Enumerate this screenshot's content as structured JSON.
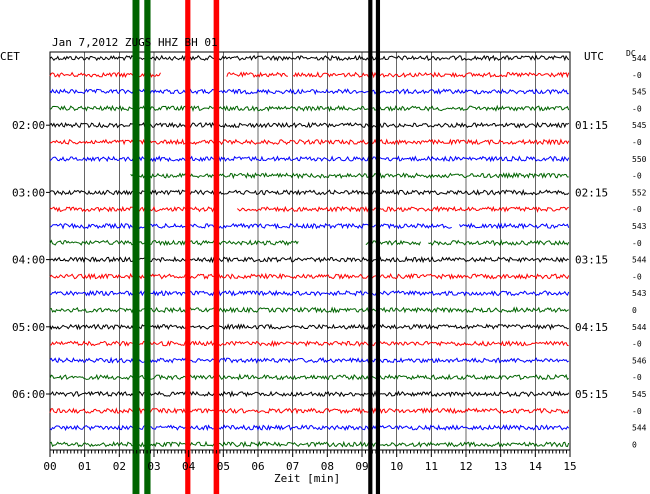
{
  "chart_data": {
    "type": "line",
    "title": "Jan 7,2012   ZUGS HHZ BH 01",
    "left_unit": "CET",
    "right_unit": "UTC",
    "dc_label": "DC",
    "xlabel": "Zeit [min]",
    "xlim": [
      0,
      15
    ],
    "x_ticks": [
      "00",
      "01",
      "02",
      "03",
      "04",
      "05",
      "06",
      "07",
      "08",
      "09",
      "10",
      "11",
      "12",
      "13",
      "14",
      "15"
    ],
    "trace_count": 24,
    "trace_colors": [
      "#000000",
      "#ff0000",
      "#0000ff",
      "#006400"
    ],
    "left_time_labels": [
      {
        "trace": 4,
        "label": "02:00"
      },
      {
        "trace": 8,
        "label": "03:00"
      },
      {
        "trace": 12,
        "label": "04:00"
      },
      {
        "trace": 16,
        "label": "05:00"
      },
      {
        "trace": 20,
        "label": "06:00"
      }
    ],
    "right_time_labels": [
      {
        "trace": 4,
        "label": "01:15"
      },
      {
        "trace": 8,
        "label": "02:15"
      },
      {
        "trace": 12,
        "label": "03:15"
      },
      {
        "trace": 16,
        "label": "04:15"
      },
      {
        "trace": 20,
        "label": "05:15"
      }
    ],
    "dc_values": [
      "544",
      "-0",
      "545",
      "-0",
      "545",
      "-0",
      "550",
      "-0",
      "552",
      "-0",
      "543",
      "-0",
      "544",
      "-0",
      "543",
      "0",
      "544",
      "-0",
      "546",
      "-0",
      "545",
      "-0",
      "544",
      "0"
    ],
    "gaps": [
      {
        "trace": 1,
        "from": 3.2,
        "to": 5.1
      },
      {
        "trace": 1,
        "from": 6.9,
        "to": 7.0
      },
      {
        "trace": 7,
        "from": 0.0,
        "to": 2.3
      },
      {
        "trace": 9,
        "from": 4.8,
        "to": 5.4
      },
      {
        "trace": 10,
        "from": 11.6,
        "to": 11.8
      },
      {
        "trace": 11,
        "from": 7.2,
        "to": 9.1
      },
      {
        "trace": 11,
        "from": 10.7,
        "to": 10.9
      }
    ],
    "events": [
      {
        "color": "#006400",
        "from": 2.38,
        "to": 2.58
      },
      {
        "color": "#006400",
        "from": 2.72,
        "to": 2.9
      },
      {
        "color": "#ff0000",
        "from": 3.9,
        "to": 4.05
      },
      {
        "color": "#ff0000",
        "from": 4.72,
        "to": 4.88
      },
      {
        "color": "#000000",
        "from": 9.18,
        "to": 9.3
      },
      {
        "color": "#000000",
        "from": 9.4,
        "to": 9.52
      }
    ],
    "grid": true
  }
}
